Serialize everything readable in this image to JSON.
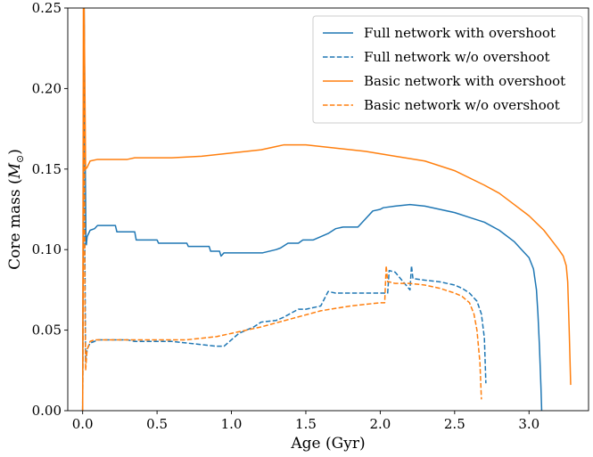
{
  "chart_data": {
    "type": "line",
    "xlabel": "Age (Gyr)",
    "ylabel_text": "Core mass (",
    "ylabel_symbol": "M",
    "ylabel_sub": "⊙",
    "ylabel_close": ")",
    "xlim": [
      -0.1,
      3.4
    ],
    "ylim": [
      0.0,
      0.25
    ],
    "xticks": [
      0.0,
      0.5,
      1.0,
      1.5,
      2.0,
      2.5,
      3.0
    ],
    "xtick_labels": [
      "0.0",
      "0.5",
      "1.0",
      "1.5",
      "2.0",
      "2.5",
      "3.0"
    ],
    "yticks": [
      0.0,
      0.05,
      0.1,
      0.15,
      0.2,
      0.25
    ],
    "ytick_labels": [
      "0.00",
      "0.05",
      "0.10",
      "0.15",
      "0.20",
      "0.25"
    ],
    "grid": false,
    "legend_position": "top-right",
    "colors": {
      "blue": "#1f77b4",
      "orange": "#ff7f0e"
    },
    "series": [
      {
        "name": "Full network with overshoot",
        "color": "#1f77b4",
        "dash": "solid",
        "x": [
          0.0,
          0.01,
          0.015,
          0.02,
          0.022,
          0.025,
          0.03,
          0.05,
          0.08,
          0.1,
          0.22,
          0.23,
          0.35,
          0.36,
          0.5,
          0.51,
          0.7,
          0.71,
          0.85,
          0.86,
          0.92,
          0.93,
          0.95,
          0.96,
          1.0,
          1.2,
          1.21,
          1.3,
          1.33,
          1.38,
          1.45,
          1.48,
          1.55,
          1.6,
          1.65,
          1.7,
          1.75,
          1.85,
          1.9,
          1.95,
          2.0,
          2.02,
          2.1,
          2.2,
          2.3,
          2.4,
          2.5,
          2.6,
          2.7,
          2.8,
          2.9,
          2.95,
          3.0,
          3.03,
          3.05,
          3.06,
          3.07,
          3.08,
          3.085
        ],
        "y": [
          0.0,
          0.25,
          0.18,
          0.13,
          0.105,
          0.103,
          0.108,
          0.112,
          0.113,
          0.115,
          0.115,
          0.111,
          0.111,
          0.106,
          0.106,
          0.104,
          0.104,
          0.102,
          0.102,
          0.099,
          0.099,
          0.096,
          0.098,
          0.098,
          0.098,
          0.098,
          0.098,
          0.1,
          0.101,
          0.104,
          0.104,
          0.106,
          0.106,
          0.108,
          0.11,
          0.113,
          0.114,
          0.114,
          0.119,
          0.124,
          0.125,
          0.126,
          0.127,
          0.128,
          0.127,
          0.125,
          0.123,
          0.12,
          0.117,
          0.112,
          0.105,
          0.1,
          0.095,
          0.088,
          0.075,
          0.06,
          0.04,
          0.015,
          0.0
        ]
      },
      {
        "name": "Full network w/o overshoot",
        "color": "#1f77b4",
        "dash": "dashed",
        "x": [
          0.0,
          0.01,
          0.015,
          0.02,
          0.03,
          0.05,
          0.08,
          0.1,
          0.3,
          0.35,
          0.6,
          0.7,
          0.9,
          0.95,
          1.0,
          1.05,
          1.15,
          1.2,
          1.3,
          1.35,
          1.45,
          1.5,
          1.6,
          1.65,
          1.7,
          1.8,
          1.9,
          2.0,
          2.05,
          2.06,
          2.1,
          2.2,
          2.21,
          2.22,
          2.3,
          2.4,
          2.5,
          2.55,
          2.6,
          2.65,
          2.68,
          2.7,
          2.71
        ],
        "y": [
          0.0,
          0.24,
          0.1,
          0.03,
          0.038,
          0.042,
          0.043,
          0.044,
          0.044,
          0.043,
          0.043,
          0.042,
          0.04,
          0.04,
          0.044,
          0.048,
          0.052,
          0.055,
          0.056,
          0.058,
          0.063,
          0.063,
          0.065,
          0.074,
          0.073,
          0.073,
          0.073,
          0.073,
          0.073,
          0.087,
          0.086,
          0.075,
          0.09,
          0.082,
          0.081,
          0.08,
          0.078,
          0.076,
          0.073,
          0.068,
          0.06,
          0.045,
          0.017
        ]
      },
      {
        "name": "Basic network with overshoot",
        "color": "#ff7f0e",
        "dash": "solid",
        "x": [
          0.0,
          0.005,
          0.01,
          0.015,
          0.02,
          0.03,
          0.05,
          0.1,
          0.3,
          0.35,
          0.6,
          0.8,
          1.0,
          1.2,
          1.3,
          1.35,
          1.5,
          1.7,
          1.9,
          2.1,
          2.3,
          2.5,
          2.7,
          2.8,
          2.9,
          3.0,
          3.1,
          3.15,
          3.2,
          3.23,
          3.25,
          3.26,
          3.27,
          3.28
        ],
        "y": [
          0.0,
          0.25,
          0.25,
          0.2,
          0.15,
          0.151,
          0.155,
          0.156,
          0.156,
          0.157,
          0.157,
          0.158,
          0.16,
          0.162,
          0.164,
          0.165,
          0.165,
          0.163,
          0.161,
          0.158,
          0.155,
          0.149,
          0.14,
          0.135,
          0.128,
          0.121,
          0.112,
          0.106,
          0.1,
          0.096,
          0.09,
          0.08,
          0.05,
          0.016
        ]
      },
      {
        "name": "Basic network w/o overshoot",
        "color": "#ff7f0e",
        "dash": "dashed",
        "x": [
          0.0,
          0.01,
          0.015,
          0.02,
          0.03,
          0.05,
          0.08,
          0.1,
          0.3,
          0.5,
          0.7,
          0.9,
          1.0,
          1.2,
          1.4,
          1.6,
          1.8,
          2.0,
          2.03,
          2.04,
          2.05,
          2.06,
          2.1,
          2.2,
          2.3,
          2.4,
          2.5,
          2.55,
          2.6,
          2.63,
          2.65,
          2.67,
          2.68
        ],
        "y": [
          0.0,
          0.22,
          0.07,
          0.025,
          0.038,
          0.043,
          0.044,
          0.044,
          0.044,
          0.044,
          0.044,
          0.046,
          0.048,
          0.052,
          0.057,
          0.062,
          0.065,
          0.067,
          0.067,
          0.09,
          0.08,
          0.08,
          0.079,
          0.079,
          0.078,
          0.076,
          0.073,
          0.071,
          0.067,
          0.06,
          0.05,
          0.03,
          0.007
        ]
      }
    ]
  }
}
